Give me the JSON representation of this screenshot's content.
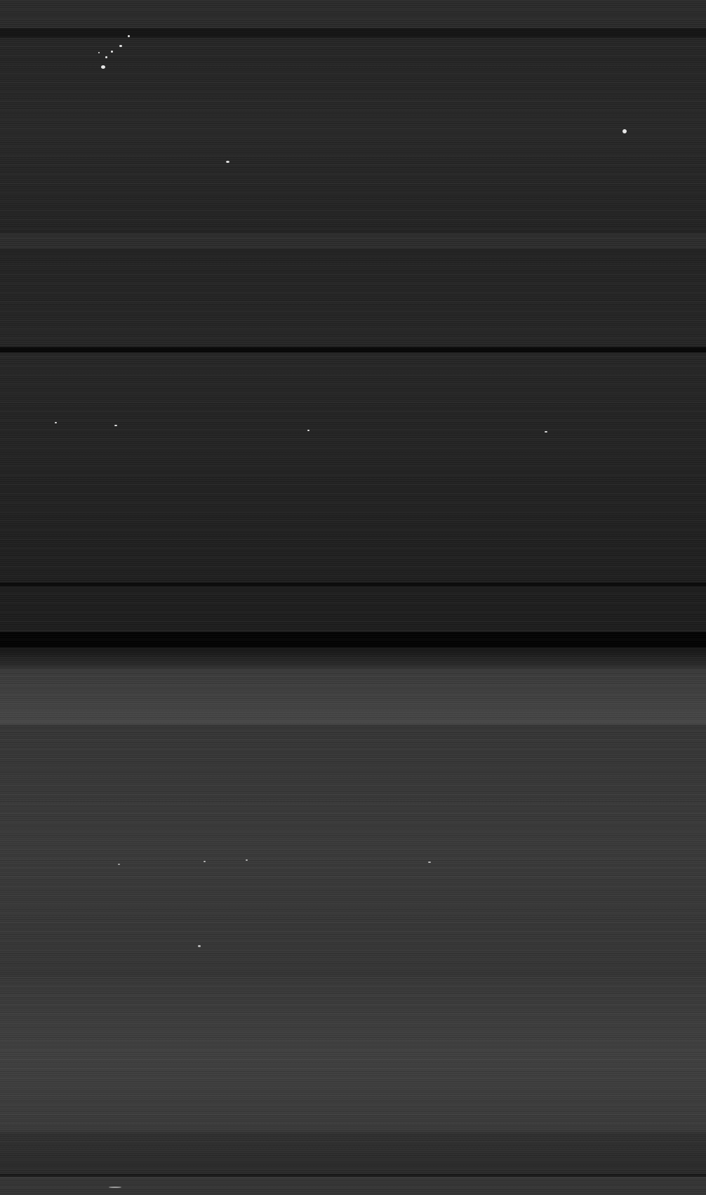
{
  "image": {
    "kind": "grayscale-scan",
    "palette": {
      "background": "#222222",
      "dark_band": "#050505",
      "mid_band": "#3a3a3a",
      "light_band": "#4a4a4a",
      "speck": "#e6e6e6"
    }
  }
}
